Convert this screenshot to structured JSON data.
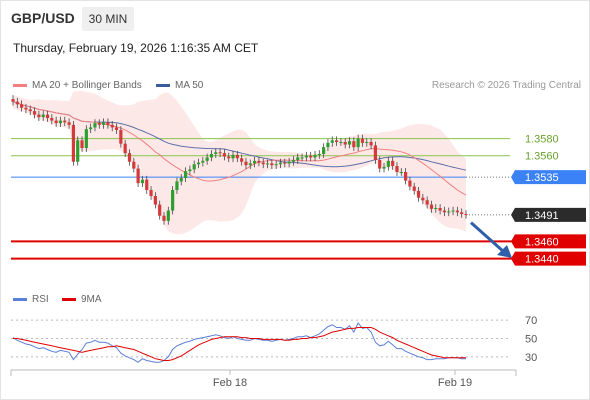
{
  "header": {
    "symbol": "GBP/USD",
    "timeframe": "30 MIN",
    "datetime": "Thursday, February 19, 2026 1:16:35 AM CET",
    "copyright": "Research © 2026 Trading Central"
  },
  "legend": {
    "price": [
      {
        "label": "MA 20 + Bollinger Bands",
        "color": "#f08080"
      },
      {
        "label": "MA 50",
        "color": "#3a5a9a"
      }
    ],
    "rsi": [
      {
        "label": "RSI",
        "color": "#5b7fd6"
      },
      {
        "label": "9MA",
        "color": "#e00000"
      }
    ]
  },
  "chart_data": [
    {
      "type": "candlestick",
      "title": "GBP/USD 30 MIN",
      "xlabels": [
        "Feb 18",
        "Feb 19"
      ],
      "ylim": [
        1.3415,
        1.3625
      ],
      "current_price": 1.3491,
      "levels": [
        {
          "value": 1.358,
          "label": "1.3580",
          "kind": "resistance",
          "color": "#8bc34a"
        },
        {
          "value": 1.356,
          "label": "1.3560",
          "kind": "resistance",
          "color": "#8bc34a"
        },
        {
          "value": 1.3535,
          "label": "1.3535",
          "kind": "pivot",
          "color": "#3b82f6"
        },
        {
          "value": 1.346,
          "label": "1.3460",
          "kind": "support",
          "color": "#e00000"
        },
        {
          "value": 1.344,
          "label": "1.3440",
          "kind": "support",
          "color": "#e00000"
        }
      ],
      "close": [
        1.3623,
        1.362,
        1.3616,
        1.3614,
        1.3612,
        1.3608,
        1.3605,
        1.3608,
        1.3604,
        1.3601,
        1.3598,
        1.3601,
        1.3599,
        1.3596,
        1.3553,
        1.3578,
        1.3569,
        1.3591,
        1.3593,
        1.3598,
        1.3596,
        1.3599,
        1.3596,
        1.3593,
        1.359,
        1.3574,
        1.3563,
        1.3553,
        1.3545,
        1.3528,
        1.3532,
        1.352,
        1.3513,
        1.3503,
        1.349,
        1.3484,
        1.3496,
        1.352,
        1.353,
        1.3534,
        1.3542,
        1.3544,
        1.355,
        1.3552,
        1.3554,
        1.3558,
        1.3562,
        1.3564,
        1.3563,
        1.3559,
        1.3557,
        1.3561,
        1.3557,
        1.3553,
        1.3549,
        1.3551,
        1.3554,
        1.3552,
        1.355,
        1.3551,
        1.3549,
        1.355,
        1.3552,
        1.3551,
        1.3553,
        1.3555,
        1.3558,
        1.3558,
        1.356,
        1.3558,
        1.3561,
        1.3562,
        1.357,
        1.3575,
        1.3578,
        1.3576,
        1.3576,
        1.3573,
        1.3577,
        1.357,
        1.358,
        1.3575,
        1.3576,
        1.3572,
        1.3555,
        1.3545,
        1.3547,
        1.3554,
        1.3548,
        1.3541,
        1.3541,
        1.3531,
        1.3524,
        1.3519,
        1.3511,
        1.3508,
        1.3503,
        1.3498,
        1.3499,
        1.3496,
        1.3494,
        1.3495,
        1.3496,
        1.3494,
        1.3492,
        1.3491
      ]
    },
    {
      "type": "line",
      "title": "RSI",
      "ylim": [
        20,
        80
      ],
      "yticks": [
        30,
        50,
        70
      ],
      "series": [
        {
          "name": "RSI",
          "color": "#5b7fd6",
          "values": [
            51,
            48,
            46,
            44,
            43,
            41,
            39,
            40,
            38,
            36,
            35,
            37,
            36,
            35,
            27,
            33,
            38,
            45,
            46,
            48,
            46,
            46,
            45,
            42,
            40,
            34,
            31,
            29,
            27,
            24,
            28,
            26,
            25,
            24,
            24,
            26,
            30,
            38,
            42,
            44,
            46,
            47,
            49,
            50,
            51,
            52,
            53,
            54,
            53,
            51,
            50,
            52,
            50,
            49,
            48,
            48,
            50,
            49,
            48,
            48,
            47,
            48,
            49,
            48,
            49,
            50,
            52,
            52,
            53,
            51,
            53,
            55,
            59,
            63,
            65,
            62,
            62,
            60,
            64,
            57,
            67,
            61,
            62,
            57,
            46,
            42,
            43,
            47,
            43,
            39,
            39,
            36,
            34,
            32,
            30,
            29,
            27,
            27,
            28,
            28,
            28,
            29,
            29,
            29,
            28,
            28
          ]
        },
        {
          "name": "9MA",
          "color": "#e00000",
          "values": [
            50,
            50,
            49,
            48,
            47,
            46,
            45,
            44,
            43,
            42,
            41,
            40,
            39,
            38,
            37,
            36,
            35,
            36,
            37,
            38,
            39,
            40,
            41,
            41,
            42,
            41,
            40,
            39,
            38,
            36,
            34,
            32,
            30,
            28,
            27,
            26,
            26,
            27,
            29,
            31,
            34,
            37,
            40,
            43,
            45,
            47,
            49,
            50,
            51,
            52,
            52,
            52,
            52,
            51,
            51,
            50,
            50,
            50,
            49,
            49,
            49,
            49,
            49,
            48,
            48,
            49,
            49,
            50,
            50,
            51,
            51,
            52,
            53,
            55,
            57,
            58,
            59,
            60,
            61,
            61,
            62,
            62,
            62,
            62,
            60,
            57,
            55,
            53,
            51,
            48,
            46,
            44,
            42,
            40,
            38,
            36,
            34,
            32,
            31,
            30,
            29,
            29,
            29,
            29,
            29,
            29
          ]
        }
      ]
    }
  ]
}
